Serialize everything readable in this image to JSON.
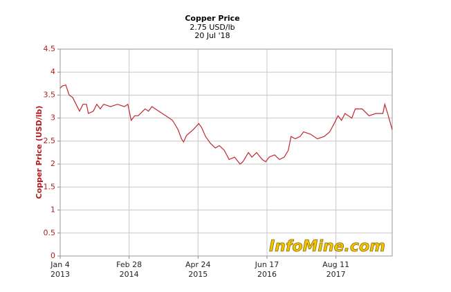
{
  "chart_data": {
    "type": "line",
    "title": "Copper Price",
    "subtitle": [
      "2.75 USD/lb",
      "20 Jul '18"
    ],
    "y_label": "Copper Price (USD/lb)",
    "watermark": "InfoMine.com",
    "grid": true,
    "x": [
      "2013-01-04",
      "2013-01-17",
      "2013-02-07",
      "2013-02-28",
      "2013-03-21",
      "2013-04-11",
      "2013-05-02",
      "2013-05-23",
      "2013-06-13",
      "2013-06-25",
      "2013-07-25",
      "2013-08-15",
      "2013-09-05",
      "2013-09-26",
      "2013-11-07",
      "2013-12-19",
      "2014-01-30",
      "2014-02-20",
      "2014-03-13",
      "2014-04-03",
      "2014-04-24",
      "2014-06-05",
      "2014-06-26",
      "2014-07-17",
      "2014-08-28",
      "2014-10-09",
      "2014-11-20",
      "2014-12-23",
      "2015-01-13",
      "2015-01-26",
      "2015-02-12",
      "2015-03-26",
      "2015-04-28",
      "2015-05-15",
      "2015-06-09",
      "2015-07-09",
      "2015-08-07",
      "2015-09-01",
      "2015-10-01",
      "2015-10-30",
      "2015-12-03",
      "2016-01-05",
      "2016-01-22",
      "2016-02-25",
      "2016-03-17",
      "2016-04-15",
      "2016-05-19",
      "2016-06-09",
      "2016-06-30",
      "2016-08-02",
      "2016-09-01",
      "2016-09-30",
      "2016-10-25",
      "2016-11-11",
      "2016-12-06",
      "2017-01-05",
      "2017-01-26",
      "2017-03-09",
      "2017-04-20",
      "2017-06-01",
      "2017-07-04",
      "2017-08-03",
      "2017-08-24",
      "2017-09-14",
      "2017-10-05",
      "2017-11-16",
      "2017-12-07",
      "2018-01-18",
      "2018-03-01",
      "2018-04-12",
      "2018-05-24",
      "2018-06-05",
      "2018-06-22",
      "2018-07-20"
    ],
    "series": [
      {
        "name": "Copper Price",
        "color": "#c1272d",
        "values": [
          3.65,
          3.7,
          3.72,
          3.5,
          3.45,
          3.3,
          3.15,
          3.3,
          3.3,
          3.1,
          3.15,
          3.3,
          3.2,
          3.3,
          3.25,
          3.3,
          3.25,
          3.3,
          2.95,
          3.05,
          3.05,
          3.2,
          3.15,
          3.25,
          3.15,
          3.05,
          2.95,
          2.75,
          2.55,
          2.48,
          2.62,
          2.75,
          2.88,
          2.8,
          2.6,
          2.45,
          2.35,
          2.4,
          2.3,
          2.1,
          2.15,
          2.0,
          2.05,
          2.25,
          2.15,
          2.25,
          2.1,
          2.05,
          2.15,
          2.2,
          2.1,
          2.15,
          2.3,
          2.6,
          2.55,
          2.6,
          2.7,
          2.65,
          2.55,
          2.6,
          2.7,
          2.9,
          3.05,
          2.95,
          3.1,
          3.0,
          3.2,
          3.2,
          3.05,
          3.1,
          3.1,
          3.3,
          3.1,
          2.75
        ]
      }
    ],
    "xlim": [
      "2013-01-04",
      "2018-07-20"
    ],
    "xticks": [
      {
        "value": "2013-01-04",
        "label": [
          "Jan 4",
          "2013"
        ]
      },
      {
        "value": "2014-02-28",
        "label": [
          "Feb 28",
          "2014"
        ]
      },
      {
        "value": "2015-04-24",
        "label": [
          "Apr 24",
          "2015"
        ]
      },
      {
        "value": "2016-06-17",
        "label": [
          "Jun 17",
          "2016"
        ]
      },
      {
        "value": "2017-08-11",
        "label": [
          "Aug 11",
          "2017"
        ]
      }
    ],
    "ylim": [
      0,
      4.5
    ],
    "yticks": [
      0,
      0.5,
      1,
      1.5,
      2,
      2.5,
      3,
      3.5,
      4,
      4.5
    ]
  }
}
